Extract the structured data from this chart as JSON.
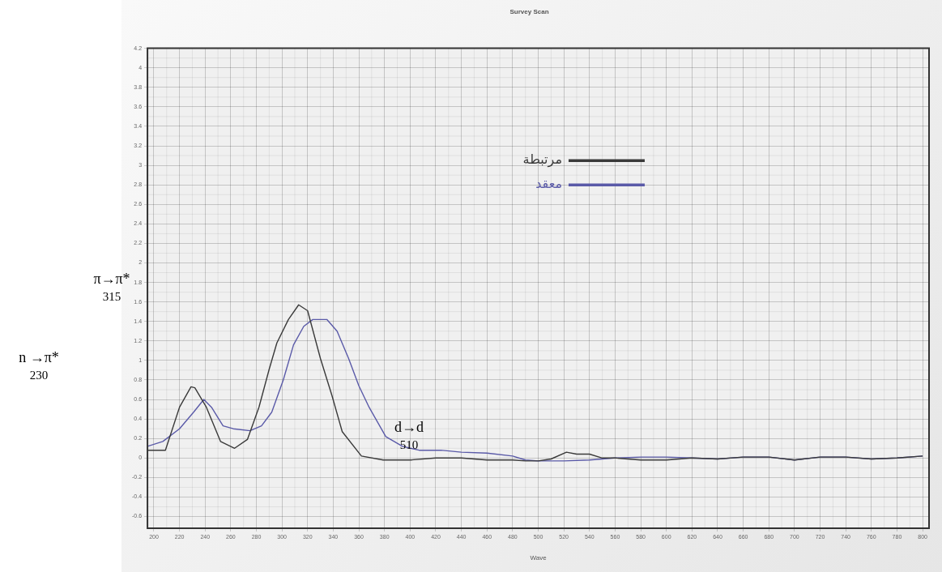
{
  "chart_data": {
    "type": "line",
    "title": "Survey Scan",
    "xlabel": "Wave",
    "xlim": [
      195,
      805
    ],
    "xticks": [
      200,
      220,
      240,
      260,
      280,
      300,
      320,
      340,
      360,
      380,
      400,
      420,
      440,
      460,
      480,
      500,
      520,
      540,
      560,
      580,
      600,
      620,
      640,
      660,
      680,
      700,
      720,
      740,
      760,
      780,
      800
    ],
    "ylim": [
      -0.72,
      4.2
    ],
    "yticks": [
      -0.6,
      -0.4,
      -0.2,
      0,
      0.2,
      0.4,
      0.6,
      0.8,
      1,
      1.2,
      1.4,
      1.6,
      1.8,
      2,
      2.2,
      2.4,
      2.6,
      2.8,
      3,
      3.2,
      3.4,
      3.6,
      3.8,
      4,
      4.2
    ],
    "grid": true,
    "legend": "top",
    "line_style": "solid",
    "marker": "none",
    "annotations": [
      "π→π*\n315",
      "n →π*\n230",
      "d→d\n510"
    ],
    "series": [
      {
        "name": "مرتبطة",
        "color": "#3a3a3a",
        "x": [
          195,
          209,
          220,
          229,
          232,
          241,
          252,
          263,
          273,
          282,
          290,
          296,
          305,
          313,
          320,
          330,
          339,
          347,
          362,
          379,
          400,
          420,
          440,
          460,
          480,
          490,
          500,
          510,
          522,
          530,
          540,
          550,
          560,
          580,
          600,
          620,
          640,
          660,
          680,
          700,
          720,
          740,
          760,
          780,
          800
        ],
        "values": [
          0.08,
          0.08,
          0.52,
          0.73,
          0.72,
          0.52,
          0.17,
          0.1,
          0.19,
          0.52,
          0.91,
          1.18,
          1.42,
          1.57,
          1.51,
          1.02,
          0.64,
          0.27,
          0.02,
          -0.02,
          -0.02,
          0,
          0,
          -0.02,
          -0.02,
          -0.03,
          -0.03,
          -0.01,
          0.06,
          0.04,
          0.04,
          0,
          0,
          -0.02,
          -0.02,
          0,
          -0.01,
          0.01,
          0.01,
          -0.02,
          0.01,
          0.01,
          -0.01,
          0,
          0.02
        ]
      },
      {
        "name": "معقد",
        "color": "#5a5aa8",
        "x": [
          195,
          207,
          220,
          231,
          239,
          245,
          254,
          262,
          275,
          284,
          292,
          301,
          309,
          317,
          324,
          335,
          343,
          352,
          360,
          368,
          381,
          394,
          407,
          424,
          440,
          460,
          480,
          490,
          500,
          520,
          540,
          560,
          580,
          600,
          620,
          640,
          660,
          680,
          700,
          720,
          740,
          760,
          780,
          800
        ],
        "values": [
          0.12,
          0.17,
          0.3,
          0.47,
          0.6,
          0.52,
          0.33,
          0.3,
          0.28,
          0.33,
          0.47,
          0.8,
          1.16,
          1.35,
          1.42,
          1.42,
          1.3,
          1.02,
          0.74,
          0.52,
          0.22,
          0.12,
          0.08,
          0.08,
          0.06,
          0.05,
          0.02,
          -0.02,
          -0.03,
          -0.03,
          -0.02,
          0,
          0.01,
          0.01,
          0,
          -0.01,
          0.01,
          0.01,
          -0.02,
          0.01,
          0.01,
          -0.01,
          0,
          0.02
        ]
      }
    ]
  }
}
